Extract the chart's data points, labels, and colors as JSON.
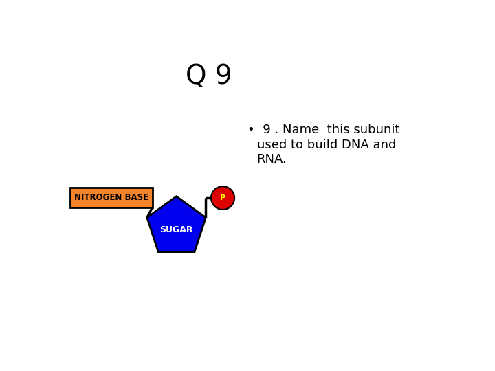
{
  "title": "Q 9",
  "title_fontsize": 28,
  "nitrogen_base_label": "NITROGEN BASE",
  "nitrogen_base_color": "#F4842A",
  "nitrogen_base_border": "#000000",
  "nitrogen_base_text_color": "#000000",
  "sugar_label": "SUGAR",
  "sugar_color": "#0000EE",
  "sugar_border": "#000000",
  "sugar_text_color": "#ffffff",
  "phosphate_label": "P",
  "phosphate_color": "#DD0000",
  "phosphate_text_color": "#ffff00",
  "background_color": "#ffffff",
  "bullet_fontsize": 13
}
